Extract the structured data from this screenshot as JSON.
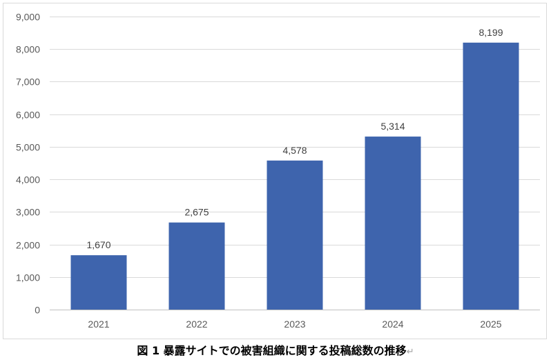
{
  "chart_data": {
    "type": "bar",
    "categories": [
      "2021",
      "2022",
      "2023",
      "2024",
      "2025"
    ],
    "values": [
      1670,
      2675,
      4578,
      5314,
      8199
    ],
    "data_labels": [
      "1,670",
      "2,675",
      "4,578",
      "5,314",
      "8,199"
    ],
    "y_ticks": [
      "0",
      "1,000",
      "2,000",
      "3,000",
      "4,000",
      "5,000",
      "6,000",
      "7,000",
      "8,000",
      "9,000"
    ],
    "ylim": [
      0,
      9000
    ],
    "ytick_step": 1000,
    "title": "",
    "xlabel": "",
    "ylabel": "",
    "grid": true,
    "legend": false,
    "colors": {
      "bar": "#3e64ad",
      "grid": "#d9d9d9",
      "axis": "#bfbfbf"
    }
  },
  "caption": {
    "text": "図 1 暴露サイトでの被害組織に関する投稿総数の推移",
    "mark": "↵"
  }
}
